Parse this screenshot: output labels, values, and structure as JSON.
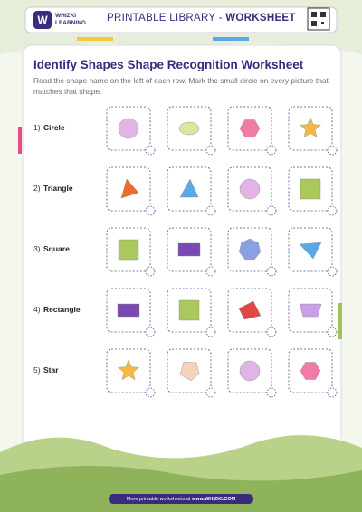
{
  "header": {
    "brand": "WHIZKI",
    "brand_sub": "LEARNING",
    "title": "PRINTABLE LIBRARY - ",
    "title_bold": "WORKSHEET"
  },
  "worksheet": {
    "title": "Identify Shapes Shape Recognition Worksheet",
    "instructions": "Read the shape name on the left of each row. Mark the small circle on every picture that matches that shape.",
    "rows": [
      {
        "number": "1)",
        "label": "Circle"
      },
      {
        "number": "2)",
        "label": "Triangle"
      },
      {
        "number": "3)",
        "label": "Square"
      },
      {
        "number": "4)",
        "label": "Rectangle"
      },
      {
        "number": "5)",
        "label": "Star"
      }
    ]
  },
  "footer": {
    "text": "More printable worksheets at ",
    "link": "www.WHIZKI.COM"
  }
}
